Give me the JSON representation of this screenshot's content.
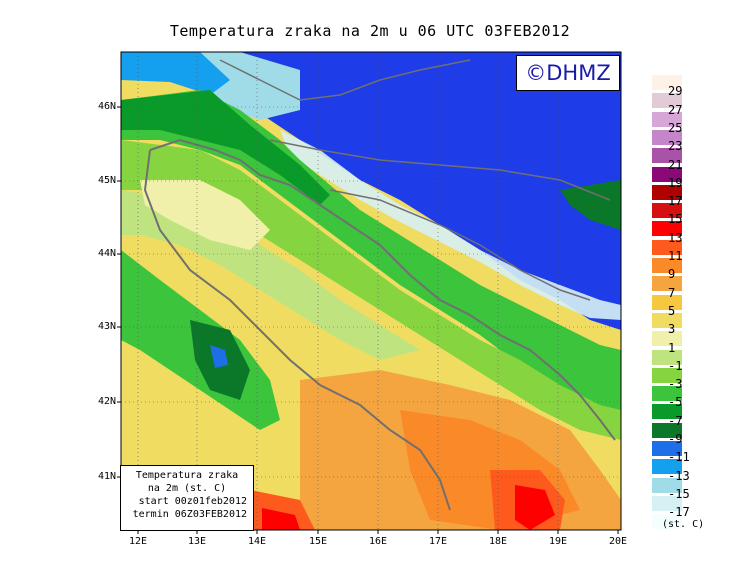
{
  "title": "Temperatura zraka na 2m u 06 UTC 03FEB2012",
  "logo": "©DHMZ",
  "latitude_labels": [
    "46N",
    "45N",
    "44N",
    "43N",
    "42N",
    "41N"
  ],
  "longitude_labels": [
    "12E",
    "13E",
    "14E",
    "15E",
    "16E",
    "17E",
    "18E",
    "19E",
    "20E"
  ],
  "info_box": {
    "line1": "Temperatura zraka",
    "line2": "na 2m (st. C)",
    "line3": "start 00z01feb2012",
    "line4": "termin 06Z03FEB2012"
  },
  "legend": {
    "unit": "(st. C)",
    "labels": [
      "29",
      "27",
      "25",
      "23",
      "21",
      "19",
      "17",
      "15",
      "13",
      "11",
      "9",
      "7",
      "5",
      "3",
      "1",
      "-1",
      "-3",
      "-5",
      "-7",
      "-9",
      "-11",
      "-13",
      "-15",
      "-17"
    ],
    "colors": [
      "#fff0e8",
      "#e2cad6",
      "#d6a7d6",
      "#c486c8",
      "#a852a8",
      "#8a0878",
      "#b00000",
      "#d41010",
      "#ff0000",
      "#ff5a1e",
      "#fa8a28",
      "#f5a540",
      "#f5c840",
      "#f0dc60",
      "#f0f0aa",
      "#bfe47f",
      "#86d440",
      "#3cc43c",
      "#0a9a2a",
      "#0a7828",
      "#1e6ee8",
      "#14a0ee",
      "#a0dce8",
      "#d6f0f4",
      "#f4fefe"
    ]
  }
}
